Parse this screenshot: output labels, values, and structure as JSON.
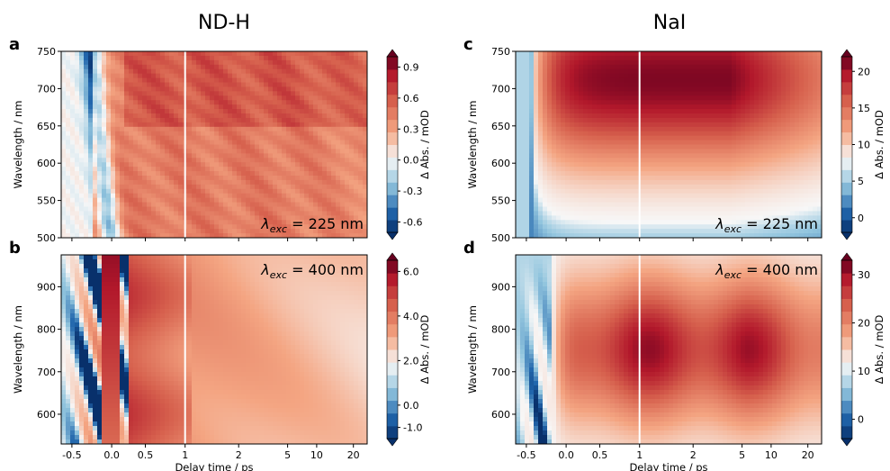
{
  "column_titles": [
    "ND-H",
    "NaI"
  ],
  "chart_data": [
    {
      "type": "heatmap",
      "panel_label": "a",
      "annotation": "λexc = 225 nm",
      "annotation_parts": {
        "symbol": "λ",
        "subscript": "exc",
        "rest": " = 225 nm"
      },
      "xlabel": "",
      "ylabel": "Wavelength / nm",
      "x_ticks": [
        "-0.5",
        "0.0",
        "0.5",
        "1",
        "2",
        "5",
        "10",
        "20"
      ],
      "y_ticks": [
        "500",
        "550",
        "600",
        "650",
        "700",
        "750"
      ],
      "ylim": [
        500,
        750
      ],
      "colorbar_label": "Δ Abs. / mOD",
      "colorbar_ticks": [
        "-0.6",
        "-0.3",
        "0.0",
        "0.3",
        "0.6",
        "0.9"
      ],
      "colorbar_range": [
        -0.7,
        1.0
      ]
    },
    {
      "type": "heatmap",
      "panel_label": "b",
      "annotation": "λexc = 400 nm",
      "annotation_parts": {
        "symbol": "λ",
        "subscript": "exc",
        "rest": " = 400 nm"
      },
      "xlabel": "Delay time / ps",
      "ylabel": "Wavelength / nm",
      "x_ticks": [
        "-0.5",
        "0.0",
        "0.5",
        "1",
        "2",
        "5",
        "10",
        "20"
      ],
      "y_ticks": [
        "600",
        "700",
        "800",
        "900"
      ],
      "ylim": [
        530,
        975
      ],
      "colorbar_label": "Δ Abs. / mOD",
      "colorbar_ticks": [
        "-1.0",
        "0.0",
        "2.0",
        "4.0",
        "6.0"
      ],
      "colorbar_range": [
        -1.5,
        6.5
      ]
    },
    {
      "type": "heatmap",
      "panel_label": "c",
      "annotation": "λexc = 225 nm",
      "annotation_parts": {
        "symbol": "λ",
        "subscript": "exc",
        "rest": " = 225 nm"
      },
      "xlabel": "",
      "ylabel": "Wavelength / nm",
      "x_ticks": [
        "-0.5",
        "0.0",
        "0.5",
        "1",
        "2",
        "5",
        "10",
        "20"
      ],
      "y_ticks": [
        "500",
        "550",
        "600",
        "650",
        "700",
        "750"
      ],
      "ylim": [
        500,
        750
      ],
      "colorbar_label": "Δ Abs. / mOD",
      "colorbar_ticks": [
        "0",
        "5",
        "10",
        "15",
        "20"
      ],
      "colorbar_range": [
        -2,
        22
      ]
    },
    {
      "type": "heatmap",
      "panel_label": "d",
      "annotation": "λexc = 400 nm",
      "annotation_parts": {
        "symbol": "λ",
        "subscript": "exc",
        "rest": " = 400 nm"
      },
      "xlabel": "Delay time / ps",
      "ylabel": "Wavelength / nm",
      "x_ticks": [
        "-0.5",
        "0.0",
        "0.5",
        "1",
        "2",
        "5",
        "10",
        "20"
      ],
      "y_ticks": [
        "600",
        "700",
        "800",
        "900"
      ],
      "ylim": [
        530,
        975
      ],
      "colorbar_label": "Δ Abs. / mOD",
      "colorbar_ticks": [
        "0",
        "10",
        "20",
        "30"
      ],
      "colorbar_range": [
        -4,
        33
      ]
    }
  ],
  "colors": {
    "dark_blue": "#08306b",
    "blue": "#2166ac",
    "light_blue": "#92c5de",
    "white": "#f7f7f7",
    "light_red": "#f4a582",
    "red": "#d6604d",
    "dark_red": "#67001f",
    "separator_line": "#ffffff"
  }
}
